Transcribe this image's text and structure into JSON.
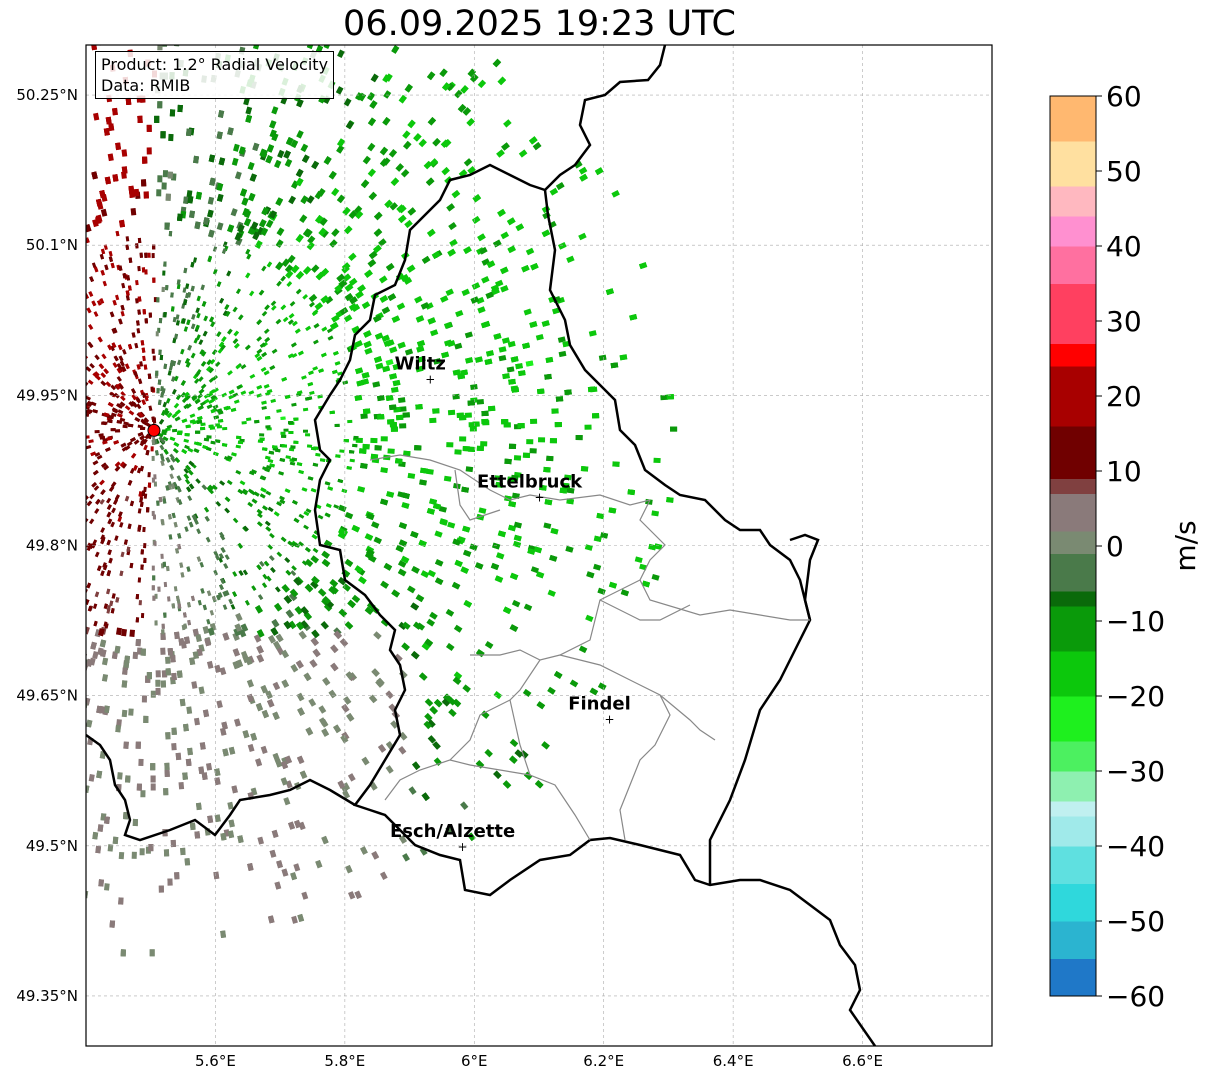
{
  "title": "06.09.2025 19:23 UTC",
  "info": {
    "product": "Product: 1.2° Radial Velocity",
    "data": "Data: RMIB"
  },
  "map": {
    "lon_range": [
      5.4,
      6.8
    ],
    "lat_range": [
      49.3,
      50.3
    ],
    "x_ticks": [
      {
        "value": 5.6,
        "label": "5.6°E"
      },
      {
        "value": 5.8,
        "label": "5.8°E"
      },
      {
        "value": 6.0,
        "label": "6°E"
      },
      {
        "value": 6.2,
        "label": "6.2°E"
      },
      {
        "value": 6.4,
        "label": "6.4°E"
      },
      {
        "value": 6.6,
        "label": "6.6°E"
      }
    ],
    "y_ticks": [
      {
        "value": 50.25,
        "label": "50.25°N"
      },
      {
        "value": 50.1,
        "label": "50.1°N"
      },
      {
        "value": 49.95,
        "label": "49.95°N"
      },
      {
        "value": 49.8,
        "label": "49.8°N"
      },
      {
        "value": 49.65,
        "label": "49.65°N"
      },
      {
        "value": 49.5,
        "label": "49.5°N"
      },
      {
        "value": 49.35,
        "label": "49.35°N"
      }
    ],
    "grid": true,
    "radar_site": {
      "lon": 5.505,
      "lat": 49.915
    },
    "cities": [
      {
        "name": "Wiltz",
        "lon": 5.935,
        "lat": 49.966
      },
      {
        "name": "Ettelbruck",
        "lon": 6.104,
        "lat": 49.848
      },
      {
        "name": "Findel",
        "lon": 6.212,
        "lat": 49.626
      },
      {
        "name": "Esch/Alzette",
        "lon": 5.985,
        "lat": 49.499
      }
    ]
  },
  "colorbar": {
    "label": "m/s",
    "vmin": -60,
    "vmax": 60,
    "ticks": [
      {
        "value": 60,
        "label": "60"
      },
      {
        "value": 50,
        "label": "50"
      },
      {
        "value": 40,
        "label": "40"
      },
      {
        "value": 30,
        "label": "30"
      },
      {
        "value": 20,
        "label": "20"
      },
      {
        "value": 10,
        "label": "10"
      },
      {
        "value": 0,
        "label": "0"
      },
      {
        "value": -10,
        "label": "−10"
      },
      {
        "value": -20,
        "label": "−20"
      },
      {
        "value": -30,
        "label": "−30"
      },
      {
        "value": -40,
        "label": "−40"
      },
      {
        "value": -50,
        "label": "−50"
      },
      {
        "value": -60,
        "label": "−60"
      }
    ],
    "stops": [
      {
        "v": -60,
        "c": "#1f78c8"
      },
      {
        "v": -55,
        "c": "#2bb4d0"
      },
      {
        "v": -50,
        "c": "#2fd8dc"
      },
      {
        "v": -45,
        "c": "#5fe0e0"
      },
      {
        "v": -40,
        "c": "#a0eaea"
      },
      {
        "v": -36,
        "c": "#c0f0f0"
      },
      {
        "v": -34,
        "c": "#8ef0b0"
      },
      {
        "v": -30,
        "c": "#4cf060"
      },
      {
        "v": -26,
        "c": "#1ef01e"
      },
      {
        "v": -20,
        "c": "#0cc80c"
      },
      {
        "v": -14,
        "c": "#0a9a0a"
      },
      {
        "v": -8,
        "c": "#0a6a0a"
      },
      {
        "v": -6,
        "c": "#4a7a4a"
      },
      {
        "v": -1,
        "c": "#7a8a72"
      },
      {
        "v": 2,
        "c": "#8a7a7a"
      },
      {
        "v": 7,
        "c": "#804040"
      },
      {
        "v": 9,
        "c": "#700000"
      },
      {
        "v": 16,
        "c": "#a80000"
      },
      {
        "v": 24,
        "c": "#ff0000"
      },
      {
        "v": 27,
        "c": "#ff4060"
      },
      {
        "v": 35,
        "c": "#ff70a0"
      },
      {
        "v": 40,
        "c": "#ff90d0"
      },
      {
        "v": 44,
        "c": "#ffb8c0"
      },
      {
        "v": 48,
        "c": "#ffe0a0"
      },
      {
        "v": 54,
        "c": "#ffb870"
      },
      {
        "v": 60,
        "c": "#ff9848"
      }
    ]
  },
  "colors": {
    "outgoing_dark": "#7a0000",
    "incoming_green": "#0a7a0a",
    "near_zero": "#6a8a6a",
    "border": "#000000",
    "canton_border": "#888888"
  }
}
